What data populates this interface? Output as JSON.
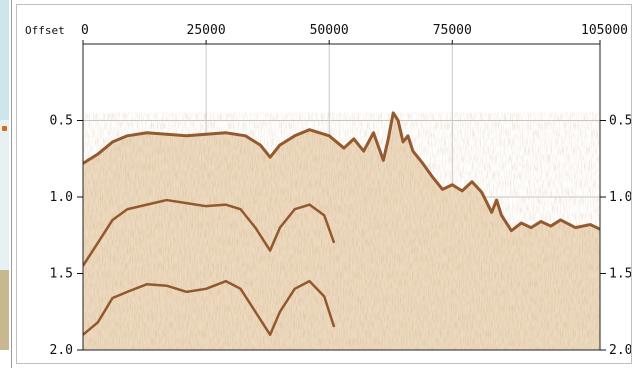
{
  "panel": {
    "offset_label": "Offset",
    "x_ticks": [
      "0",
      "25000",
      "50000",
      "75000",
      "105000"
    ],
    "y_ticks_left": [
      "0.5",
      "1.0",
      "1.5",
      "2.0"
    ],
    "y_ticks_right": [
      "0.5",
      "1.0",
      "1.5",
      "2.0"
    ]
  },
  "chart_data": {
    "type": "area",
    "xlim": [
      0,
      105000
    ],
    "ylim": [
      2.0,
      0.0
    ],
    "x_tick_values": [
      0,
      25000,
      50000,
      75000,
      105000
    ],
    "y_tick_values": [
      0.5,
      1.0,
      1.5,
      2.0
    ],
    "grid": true,
    "colors": {
      "fill": "#ecd9bf",
      "event": "#8a4a1d",
      "grid": "#c9c9c9",
      "blank": "#ffffff"
    },
    "series": [
      {
        "values": [
          [
            0,
            0.78
          ],
          [
            3000,
            0.72
          ],
          [
            6000,
            0.64
          ],
          [
            9000,
            0.6
          ],
          [
            13000,
            0.58
          ],
          [
            17000,
            0.59
          ],
          [
            21000,
            0.6
          ],
          [
            25000,
            0.59
          ],
          [
            29000,
            0.58
          ],
          [
            33000,
            0.6
          ],
          [
            36000,
            0.66
          ],
          [
            38000,
            0.74
          ],
          [
            40000,
            0.66
          ],
          [
            43000,
            0.6
          ],
          [
            46000,
            0.56
          ],
          [
            50000,
            0.6
          ],
          [
            53000,
            0.68
          ],
          [
            55000,
            0.62
          ],
          [
            57000,
            0.7
          ],
          [
            59000,
            0.58
          ],
          [
            61000,
            0.76
          ],
          [
            62000,
            0.62
          ],
          [
            63000,
            0.45
          ],
          [
            64000,
            0.5
          ],
          [
            65000,
            0.64
          ],
          [
            66000,
            0.6
          ],
          [
            67000,
            0.7
          ],
          [
            69000,
            0.78
          ],
          [
            71000,
            0.87
          ],
          [
            73000,
            0.95
          ],
          [
            75000,
            0.92
          ],
          [
            77000,
            0.96
          ],
          [
            79000,
            0.9
          ],
          [
            81000,
            0.97
          ],
          [
            83000,
            1.1
          ],
          [
            84000,
            1.02
          ],
          [
            85000,
            1.12
          ],
          [
            87000,
            1.22
          ],
          [
            89000,
            1.17
          ],
          [
            91000,
            1.2
          ],
          [
            93000,
            1.16
          ],
          [
            95000,
            1.19
          ],
          [
            97000,
            1.15
          ],
          [
            100000,
            1.2
          ],
          [
            103000,
            1.18
          ],
          [
            105000,
            1.21
          ]
        ]
      },
      {
        "values": [
          [
            0,
            1.45
          ],
          [
            3000,
            1.3
          ],
          [
            6000,
            1.15
          ],
          [
            9000,
            1.08
          ],
          [
            13000,
            1.05
          ],
          [
            17000,
            1.02
          ],
          [
            21000,
            1.04
          ],
          [
            25000,
            1.06
          ],
          [
            29000,
            1.05
          ],
          [
            32000,
            1.08
          ],
          [
            35000,
            1.2
          ],
          [
            38000,
            1.35
          ],
          [
            40000,
            1.2
          ],
          [
            43000,
            1.08
          ],
          [
            46000,
            1.05
          ],
          [
            49000,
            1.12
          ],
          [
            51000,
            1.3
          ]
        ]
      },
      {
        "values": [
          [
            0,
            1.9
          ],
          [
            3000,
            1.82
          ],
          [
            6000,
            1.66
          ],
          [
            9000,
            1.62
          ],
          [
            13000,
            1.57
          ],
          [
            17000,
            1.58
          ],
          [
            21000,
            1.62
          ],
          [
            25000,
            1.6
          ],
          [
            29000,
            1.55
          ],
          [
            32000,
            1.6
          ],
          [
            35000,
            1.75
          ],
          [
            38000,
            1.9
          ],
          [
            40000,
            1.75
          ],
          [
            43000,
            1.6
          ],
          [
            46000,
            1.55
          ],
          [
            49000,
            1.65
          ],
          [
            51000,
            1.85
          ]
        ]
      }
    ]
  }
}
